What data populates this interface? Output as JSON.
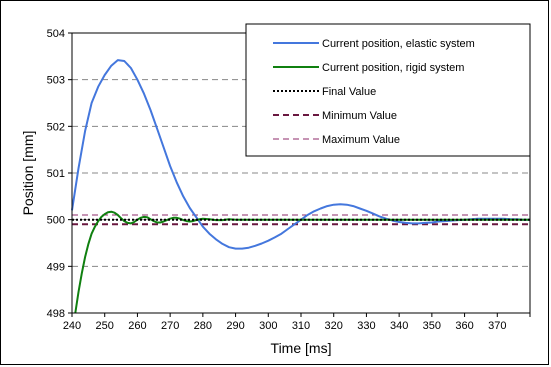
{
  "chart_data": {
    "type": "line",
    "xlabel": "Time [ms]",
    "ylabel": "Position [mm]",
    "xlim": [
      240,
      380
    ],
    "ylim": [
      498,
      504
    ],
    "xticks": [
      240,
      250,
      260,
      270,
      280,
      290,
      300,
      310,
      320,
      330,
      340,
      350,
      360,
      370
    ],
    "yticks": [
      498,
      499,
      500,
      501,
      502,
      503,
      504
    ],
    "grid": "horizontal dashed",
    "legend_position": "top-right",
    "colors": {
      "elastic": "#4477dd",
      "rigid": "#108010",
      "final": "#000000",
      "minimum": "#6a1840",
      "maximum": "#8c2a6a"
    },
    "series": [
      {
        "name": "Current position, elastic system",
        "style": "solid",
        "x": [
          240,
          242,
          244,
          246,
          248,
          250,
          252,
          254,
          256,
          258,
          260,
          262,
          264,
          266,
          268,
          270,
          272,
          274,
          276,
          278,
          280,
          282,
          284,
          286,
          288,
          290,
          292,
          294,
          296,
          298,
          300,
          302,
          304,
          306,
          308,
          310,
          312,
          314,
          316,
          318,
          320,
          322,
          324,
          326,
          328,
          330,
          332,
          334,
          336,
          338,
          340,
          342,
          344,
          346,
          348,
          350,
          352,
          354,
          356,
          358,
          360,
          362,
          364,
          366,
          368,
          370,
          372,
          374,
          376,
          378,
          380
        ],
        "y": [
          500.2,
          501.1,
          501.9,
          502.5,
          502.85,
          503.1,
          503.3,
          503.42,
          503.4,
          503.25,
          503.0,
          502.7,
          502.35,
          501.95,
          501.55,
          501.15,
          500.8,
          500.5,
          500.25,
          500.05,
          499.85,
          499.7,
          499.58,
          499.48,
          499.41,
          499.38,
          499.38,
          499.4,
          499.44,
          499.49,
          499.55,
          499.62,
          499.7,
          499.8,
          499.9,
          500.0,
          500.1,
          500.18,
          500.24,
          500.29,
          500.32,
          500.33,
          500.32,
          500.29,
          500.24,
          500.19,
          500.13,
          500.07,
          500.02,
          499.98,
          499.95,
          499.93,
          499.92,
          499.92,
          499.93,
          499.94,
          499.96,
          499.97,
          499.98,
          499.99,
          500.0,
          500.01,
          500.02,
          500.02,
          500.02,
          500.02,
          500.02,
          500.01,
          500.01,
          500.0,
          500.0
        ]
      },
      {
        "name": "Current position, rigid system",
        "style": "solid",
        "x": [
          241,
          242,
          243,
          244,
          245,
          246,
          247,
          248,
          249,
          250,
          251,
          252,
          253,
          254,
          255,
          256,
          257,
          258,
          259,
          260,
          261,
          262,
          263,
          264,
          265,
          266,
          267,
          268,
          269,
          270,
          271,
          272,
          273,
          274,
          275,
          276,
          277,
          278,
          279,
          280,
          282,
          284,
          286,
          288,
          290,
          292,
          294,
          296,
          298,
          300,
          305,
          310,
          320,
          330,
          340,
          350,
          360,
          370,
          380
        ],
        "y": [
          498.0,
          498.45,
          498.85,
          499.2,
          499.48,
          499.7,
          499.85,
          499.97,
          500.06,
          500.12,
          500.16,
          500.17,
          500.15,
          500.1,
          500.03,
          499.97,
          499.93,
          499.92,
          499.95,
          500.0,
          500.04,
          500.06,
          500.05,
          500.01,
          499.97,
          499.94,
          499.94,
          499.96,
          499.99,
          500.02,
          500.04,
          500.04,
          500.02,
          499.99,
          499.97,
          499.96,
          499.97,
          499.99,
          500.01,
          500.02,
          500.01,
          499.99,
          499.99,
          500.01,
          500.0,
          500.0,
          500.0,
          500.0,
          500.0,
          500.0,
          500.0,
          500.0,
          500.0,
          500.0,
          500.0,
          500.0,
          500.0,
          500.0,
          500.0
        ]
      },
      {
        "name": "Final Value",
        "style": "dotted",
        "x": [
          240,
          380
        ],
        "y": [
          500.0,
          500.0
        ]
      },
      {
        "name": "Minimum Value",
        "style": "dashed",
        "x": [
          240,
          380
        ],
        "y": [
          499.9,
          499.9
        ]
      },
      {
        "name": "Maximum Value",
        "style": "dashed-thin",
        "x": [
          240,
          380
        ],
        "y": [
          500.1,
          500.1
        ]
      }
    ]
  }
}
